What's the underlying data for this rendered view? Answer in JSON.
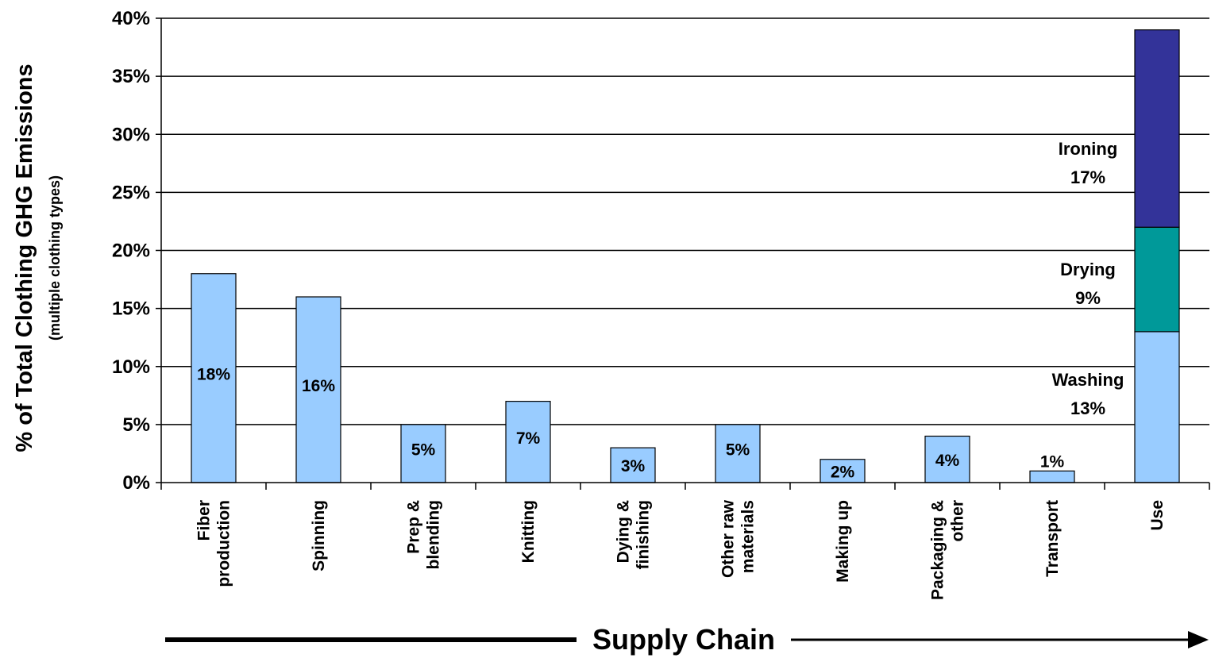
{
  "chart_data": {
    "type": "bar",
    "stacked_category": "Use",
    "categories": [
      [
        "Fiber",
        "production"
      ],
      [
        "Spinning"
      ],
      [
        "Prep &",
        "blending"
      ],
      [
        "Knitting"
      ],
      [
        "Dying &",
        "finishing"
      ],
      [
        "Other raw",
        "materials"
      ],
      [
        "Making up"
      ],
      [
        "Packaging &",
        "other"
      ],
      [
        "Transport"
      ],
      [
        "Use"
      ]
    ],
    "values": [
      18,
      16,
      5,
      7,
      3,
      5,
      2,
      4,
      1,
      39
    ],
    "data_labels": [
      "18%",
      "16%",
      "5%",
      "7%",
      "3%",
      "5%",
      "2%",
      "4%",
      "1%",
      ""
    ],
    "use_segments": [
      {
        "name": "Washing",
        "value": 13,
        "label": "13%",
        "color": "#99ccff"
      },
      {
        "name": "Drying",
        "value": 9,
        "label": "9%",
        "color": "#009999"
      },
      {
        "name": "Ironing",
        "value": 17,
        "label": "17%",
        "color": "#333399"
      }
    ],
    "bar_color": "#99ccff",
    "ylabel": "% of Total Clothing GHG Emissions",
    "ylabel_sub": "(multiple clothing types)",
    "xlabel": "Supply Chain",
    "ylim": [
      0,
      40
    ],
    "yticks": [
      "0%",
      "5%",
      "10%",
      "15%",
      "20%",
      "25%",
      "30%",
      "35%",
      "40%"
    ],
    "grid": true
  }
}
